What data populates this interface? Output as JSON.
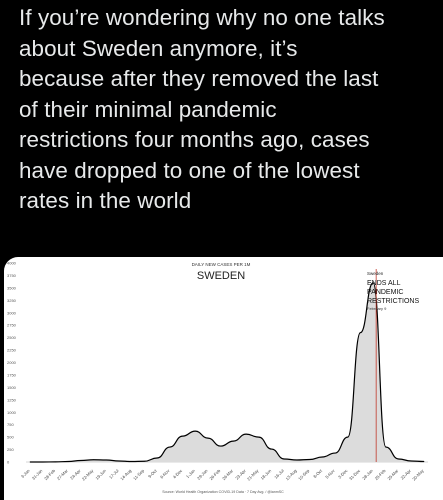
{
  "tweet": {
    "lines": [
      "If you’re wondering why no one talks",
      "about Sweden anymore, it’s",
      "because after they removed the last",
      "of their minimal pandemic",
      "restrictions four months ago, cases",
      "have dropped to one of the lowest",
      "rates in the world"
    ]
  },
  "chart_data": {
    "type": "area",
    "title": "SWEDEN",
    "subtitle": "DAILY NEW CASES PER 1M",
    "source": "Source: World Health Organization COVID-19 Data · 7 Day Avg. / @ianmSC",
    "ylim": [
      0,
      4000
    ],
    "yticks": [
      "0",
      "250",
      "500",
      "750",
      "1000",
      "1250",
      "1500",
      "1750",
      "2000",
      "2250",
      "2500",
      "2750",
      "3000",
      "3250",
      "3500",
      "3750",
      "4000"
    ],
    "x": [
      "3-Jan",
      "31-Jan",
      "28-Feb",
      "27-Mar",
      "24-Apr",
      "22-May",
      "19-Jun",
      "17-Jul",
      "14-Aug",
      "11-Sep",
      "9-Oct",
      "6-Nov",
      "4-Dec",
      "1-Jan",
      "29-Jan",
      "26-Feb",
      "26-Mar",
      "23-Apr",
      "21-May",
      "18-Jun",
      "16-Jul",
      "13-Aug",
      "10-Sep",
      "8-Oct",
      "5-Nov",
      "3-Dec",
      "31-Dec",
      "28-Jan",
      "25-Feb",
      "25-Mar",
      "22-Apr",
      "20-May"
    ],
    "values": [
      0,
      0,
      2,
      10,
      30,
      45,
      40,
      20,
      10,
      15,
      80,
      300,
      520,
      620,
      480,
      320,
      420,
      560,
      500,
      260,
      60,
      40,
      50,
      100,
      180,
      500,
      2600,
      3600,
      300,
      60,
      20,
      10
    ],
    "series_color": "#000000",
    "annotation": {
      "small": "Sweden",
      "lines": [
        "ENDS ALL",
        "PANDEMIC",
        "RESTRICTIONS"
      ],
      "date": "February 9",
      "line_color": "#c0392b"
    }
  }
}
